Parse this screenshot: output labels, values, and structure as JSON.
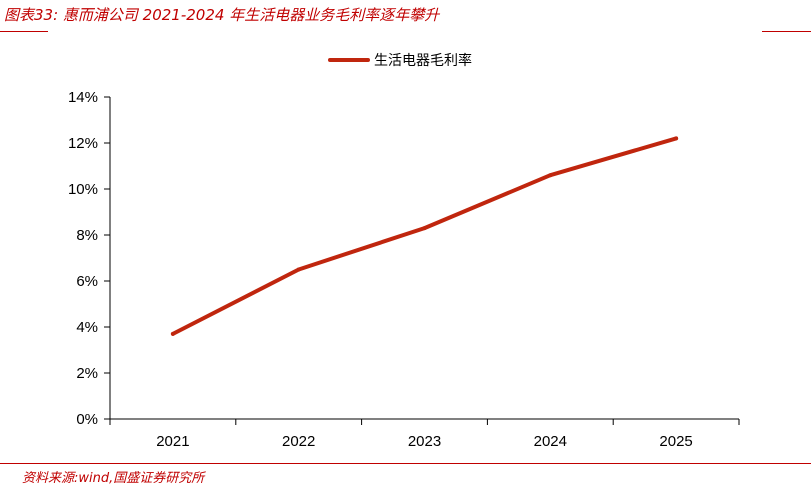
{
  "header": {
    "title": "图表33:  惠而浦公司 2021-2024 年生活电器业务毛利率逐年攀升"
  },
  "footer": {
    "source": "资料来源:wind,国盛证券研究所"
  },
  "colors": {
    "accent": "#c00000",
    "series": "#c0260e"
  },
  "chart_data": {
    "type": "line",
    "x": [
      "2021",
      "2022",
      "2023",
      "2024",
      "2025"
    ],
    "series": [
      {
        "name": "生活电器毛利率",
        "values": [
          3.7,
          6.5,
          8.3,
          10.6,
          12.2
        ]
      }
    ],
    "ylim": [
      0,
      14
    ],
    "yticks": [
      "0%",
      "2%",
      "4%",
      "6%",
      "8%",
      "10%",
      "12%",
      "14%"
    ],
    "ytick_values": [
      0,
      2,
      4,
      6,
      8,
      10,
      12,
      14
    ],
    "grid": false,
    "legend_position": "top-center"
  }
}
